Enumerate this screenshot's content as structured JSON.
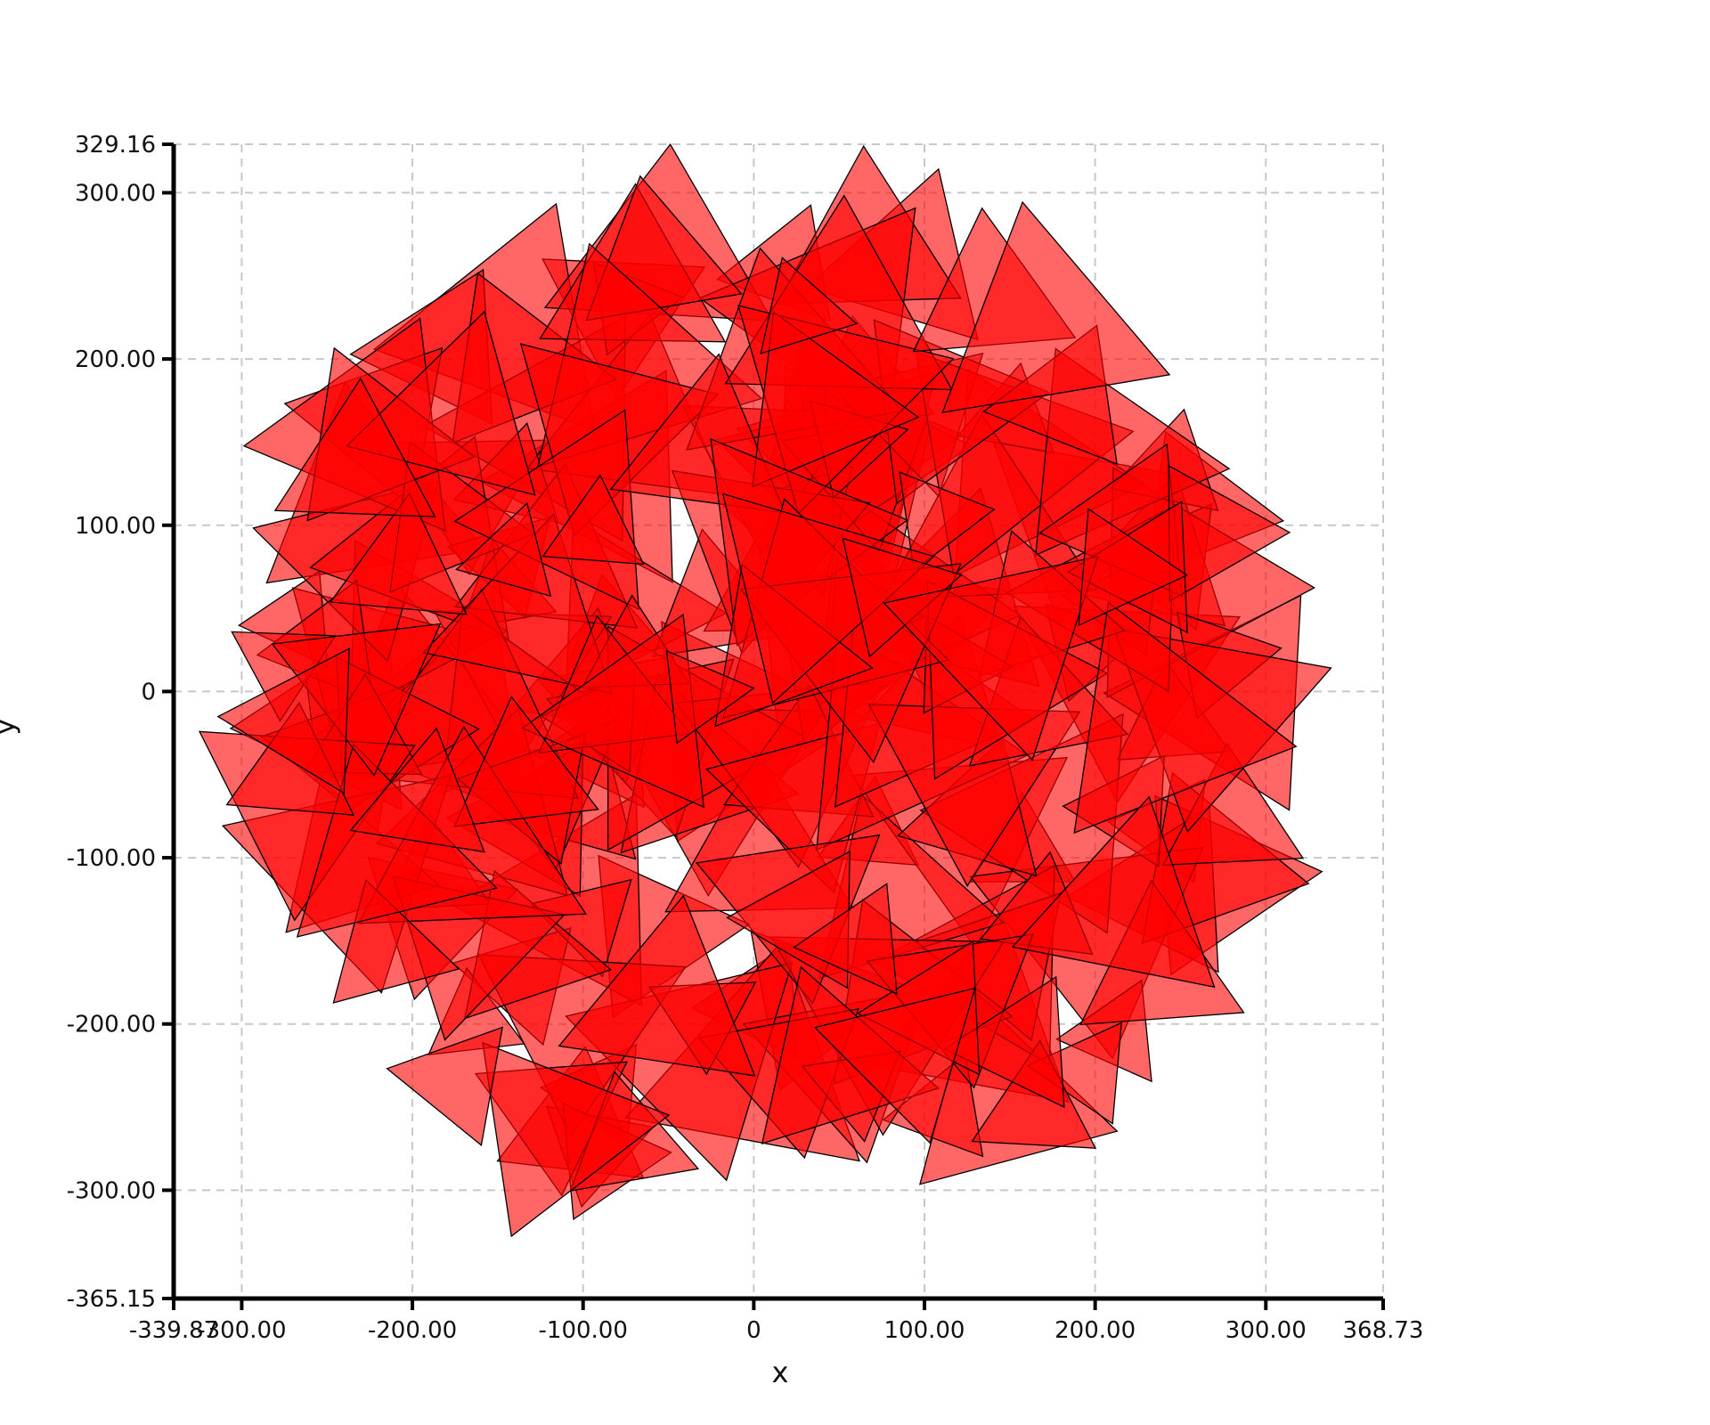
{
  "chart_data": {
    "type": "scatter",
    "mark": "triangle",
    "xlabel": "x",
    "ylabel": "y",
    "xlim": [
      -339.87,
      368.73
    ],
    "ylim": [
      -365.15,
      329.16
    ],
    "x_ticks": [
      -339.87,
      -300,
      -200,
      -100,
      0,
      100,
      200,
      300,
      368.73
    ],
    "x_tick_labels": [
      "-339.87",
      "-300.00",
      "-200.00",
      "-100.00",
      "0",
      "100.00",
      "200.00",
      "300.00",
      "368.73"
    ],
    "y_ticks": [
      -365.15,
      -300,
      -200,
      -100,
      0,
      100,
      200,
      300,
      329.16
    ],
    "y_tick_labels": [
      "-365.15",
      "-300.00",
      "-200.00",
      "-100.00",
      "0",
      "100.00",
      "200.00",
      "300.00",
      "329.16"
    ],
    "grid": true,
    "fill_color": "#ff0000",
    "fill_opacity": 0.6,
    "stroke_color": "#000000",
    "count": 220,
    "generation": {
      "center": [
        0,
        -15
      ],
      "radius": 290,
      "edge_min": 55,
      "edge_max": 140,
      "seed": 20240611
    }
  }
}
